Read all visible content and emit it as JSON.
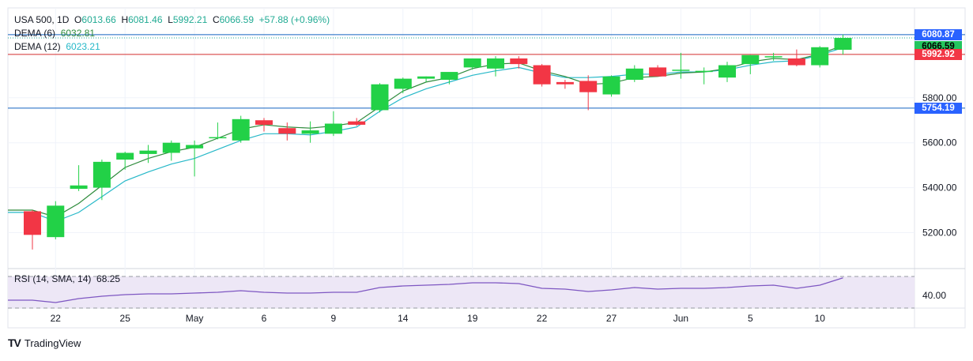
{
  "legend": {
    "symbol": "USA 500, 1D",
    "open_label": "O",
    "open": "6013.66",
    "high_label": "H",
    "high": "6081.46",
    "low_label": "L",
    "low": "5992.21",
    "close_label": "C",
    "close": "6066.59",
    "change": "+57.88 (+0.96%)",
    "dema6_label": "DEMA (6)",
    "dema6_value": "6032.81",
    "dema12_label": "DEMA (12)",
    "dema12_value": "6023.21"
  },
  "rsi": {
    "label": "RSI (14, SMA, 14)",
    "value": "68.25",
    "axis_label": "40.00"
  },
  "price_tags": [
    {
      "label": "6080.87",
      "value": 6080.87,
      "color": "#2962ff",
      "text_color": "#ffffff"
    },
    {
      "label": "6066.59",
      "value": 6066.59,
      "color": "#22c55e",
      "text_color": "#000000"
    },
    {
      "label": "5992.92",
      "value": 5992.92,
      "color": "#f23645",
      "text_color": "#ffffff"
    },
    {
      "label": "5754.19",
      "value": 5754.19,
      "color": "#2962ff",
      "text_color": "#ffffff"
    }
  ],
  "brand": {
    "name": "TradingView",
    "logo": "TV"
  },
  "colors": {
    "up": "#22d147",
    "down": "#f23645",
    "dema6": "#2e8b3c",
    "dema12": "#26b8c8",
    "hline_red": "#d32f2f",
    "hline_blue": "#1565c0",
    "rsi_line": "#7e57c2",
    "rsi_band": "#ede7f6"
  },
  "chart_data": {
    "type": "candlestick",
    "title": "USA 500, 1D",
    "ylim": [
      5040,
      6200
    ],
    "y_ticks": [
      5200,
      5400,
      5600,
      5800
    ],
    "y_tick_labels": [
      "5200.00",
      "5400.00",
      "5600.00",
      "5800.00"
    ],
    "x_tick_labels": [
      {
        "label": "22",
        "index": 1
      },
      {
        "label": "25",
        "index": 4
      },
      {
        "label": "May",
        "index": 7
      },
      {
        "label": "6",
        "index": 10
      },
      {
        "label": "9",
        "index": 13
      },
      {
        "label": "14",
        "index": 16
      },
      {
        "label": "19",
        "index": 19
      },
      {
        "label": "22",
        "index": 22
      },
      {
        "label": "27",
        "index": 25
      },
      {
        "label": "Jun",
        "index": 28
      },
      {
        "label": "5",
        "index": 31
      },
      {
        "label": "10",
        "index": 34
      }
    ],
    "horizontal_lines": [
      {
        "value": 6080.87,
        "color": "#1565c0"
      },
      {
        "value": 5992.92,
        "color": "#d32f2f"
      },
      {
        "value": 5754.19,
        "color": "#1565c0"
      }
    ],
    "dotted_line": {
      "value": 6066.59
    },
    "candles": [
      {
        "o": 5295,
        "h": 5300,
        "l": 5125,
        "c": 5190
      },
      {
        "o": 5180,
        "h": 5340,
        "l": 5170,
        "c": 5320
      },
      {
        "o": 5395,
        "h": 5500,
        "l": 5385,
        "c": 5410
      },
      {
        "o": 5400,
        "h": 5525,
        "l": 5345,
        "c": 5515
      },
      {
        "o": 5525,
        "h": 5560,
        "l": 5480,
        "c": 5555
      },
      {
        "o": 5550,
        "h": 5590,
        "l": 5510,
        "c": 5565
      },
      {
        "o": 5555,
        "h": 5610,
        "l": 5520,
        "c": 5600
      },
      {
        "o": 5575,
        "h": 5610,
        "l": 5450,
        "c": 5590
      },
      {
        "o": 5620,
        "h": 5690,
        "l": 5615,
        "c": 5625
      },
      {
        "o": 5610,
        "h": 5720,
        "l": 5600,
        "c": 5705
      },
      {
        "o": 5700,
        "h": 5710,
        "l": 5650,
        "c": 5680
      },
      {
        "o": 5665,
        "h": 5690,
        "l": 5610,
        "c": 5640
      },
      {
        "o": 5640,
        "h": 5695,
        "l": 5600,
        "c": 5655
      },
      {
        "o": 5640,
        "h": 5740,
        "l": 5630,
        "c": 5685
      },
      {
        "o": 5695,
        "h": 5710,
        "l": 5675,
        "c": 5680
      },
      {
        "o": 5745,
        "h": 5865,
        "l": 5735,
        "c": 5860
      },
      {
        "o": 5840,
        "h": 5890,
        "l": 5820,
        "c": 5885
      },
      {
        "o": 5885,
        "h": 5895,
        "l": 5870,
        "c": 5895
      },
      {
        "o": 5880,
        "h": 5910,
        "l": 5860,
        "c": 5915
      },
      {
        "o": 5935,
        "h": 5975,
        "l": 5925,
        "c": 5975
      },
      {
        "o": 5930,
        "h": 5985,
        "l": 5895,
        "c": 5975
      },
      {
        "o": 5975,
        "h": 5985,
        "l": 5930,
        "c": 5950
      },
      {
        "o": 5945,
        "h": 5950,
        "l": 5850,
        "c": 5860
      },
      {
        "o": 5870,
        "h": 5880,
        "l": 5840,
        "c": 5860
      },
      {
        "o": 5875,
        "h": 5900,
        "l": 5745,
        "c": 5825
      },
      {
        "o": 5815,
        "h": 5900,
        "l": 5805,
        "c": 5895
      },
      {
        "o": 5880,
        "h": 5945,
        "l": 5870,
        "c": 5930
      },
      {
        "o": 5935,
        "h": 5945,
        "l": 5895,
        "c": 5895
      },
      {
        "o": 5920,
        "h": 6000,
        "l": 5885,
        "c": 5925
      },
      {
        "o": 5915,
        "h": 5935,
        "l": 5860,
        "c": 5920
      },
      {
        "o": 5890,
        "h": 5960,
        "l": 5870,
        "c": 5945
      },
      {
        "o": 5950,
        "h": 5990,
        "l": 5905,
        "c": 5990
      },
      {
        "o": 5985,
        "h": 6000,
        "l": 5965,
        "c": 5985
      },
      {
        "o": 5975,
        "h": 6015,
        "l": 5940,
        "c": 5945
      },
      {
        "o": 5945,
        "h": 6030,
        "l": 5935,
        "c": 6025
      },
      {
        "o": 6013.66,
        "h": 6081.46,
        "l": 5992.21,
        "c": 6066.59
      }
    ],
    "dema6": [
      5300,
      5270,
      5330,
      5410,
      5490,
      5530,
      5560,
      5580,
      5620,
      5660,
      5680,
      5670,
      5665,
      5675,
      5690,
      5760,
      5830,
      5870,
      5890,
      5930,
      5950,
      5955,
      5920,
      5895,
      5860,
      5865,
      5890,
      5895,
      5910,
      5915,
      5930,
      5960,
      5975,
      5970,
      5995,
      6032.81
    ],
    "dema12": [
      5290,
      5250,
      5290,
      5360,
      5430,
      5470,
      5505,
      5530,
      5570,
      5610,
      5640,
      5640,
      5635,
      5650,
      5670,
      5740,
      5800,
      5840,
      5870,
      5900,
      5920,
      5935,
      5910,
      5890,
      5890,
      5895,
      5905,
      5905,
      5915,
      5915,
      5925,
      5945,
      5960,
      5965,
      5990,
      6023.21
    ],
    "rsi": {
      "ylim": [
        30,
        80
      ],
      "band": [
        30,
        70
      ],
      "values": [
        40,
        37,
        42,
        45,
        47,
        48,
        48,
        49,
        50,
        52,
        50,
        49,
        49,
        50,
        50,
        56,
        58,
        59,
        60,
        62,
        62,
        61,
        55,
        54,
        51,
        53,
        56,
        54,
        55,
        55,
        56,
        58,
        59,
        55,
        59,
        68.25
      ]
    }
  }
}
